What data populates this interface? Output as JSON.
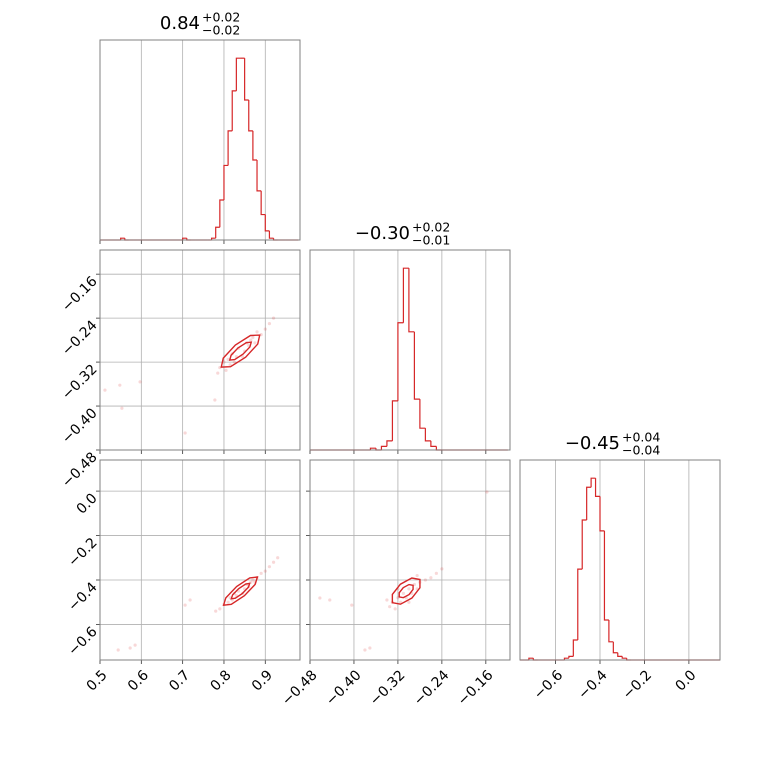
{
  "chart_data": {
    "type": "corner",
    "color": "#d62728",
    "grid": true,
    "hist_ylim": [
      0,
      110
    ],
    "parameters": [
      {
        "title": {
          "value": "0.84",
          "plus": "+0.02",
          "minus": "−0.02"
        },
        "lim": [
          0.5,
          0.984
        ],
        "ticks": [
          0.5,
          0.6,
          0.7,
          0.8,
          0.9
        ],
        "hist": {
          "bins": [
            0.5,
            0.51,
            0.52,
            0.53,
            0.54,
            0.55,
            0.56,
            0.57,
            0.58,
            0.59,
            0.6,
            0.61,
            0.62,
            0.63,
            0.64,
            0.65,
            0.66,
            0.67,
            0.68,
            0.69,
            0.7,
            0.71,
            0.72,
            0.73,
            0.74,
            0.75,
            0.76,
            0.77,
            0.78,
            0.79,
            0.8,
            0.81,
            0.82,
            0.83,
            0.84,
            0.85,
            0.86,
            0.87,
            0.88,
            0.89,
            0.9,
            0.91,
            0.92,
            0.93,
            0.94,
            0.95,
            0.96,
            0.97,
            0.98
          ],
          "counts": [
            0,
            0,
            0,
            0,
            0,
            1,
            0,
            0,
            0,
            0,
            0,
            0,
            0,
            0,
            0,
            0,
            0,
            0,
            0,
            0,
            1,
            0,
            0,
            0,
            0,
            0,
            0,
            1,
            7,
            22,
            41,
            60,
            82,
            100,
            100,
            77,
            60,
            44,
            27,
            14,
            5,
            1,
            0,
            0,
            0,
            0,
            0,
            0
          ]
        }
      },
      {
        "title": {
          "value": "−0.30",
          "plus": "+0.02",
          "minus": "−0.01"
        },
        "lim": [
          -0.48,
          -0.116
        ],
        "ticks": [
          {
            "value": -0.48,
            "label": "−0.48"
          },
          {
            "value": -0.4,
            "label": "−0.40"
          },
          {
            "value": -0.32,
            "label": "−0.32"
          },
          {
            "value": -0.24,
            "label": "−0.24"
          },
          {
            "value": -0.16,
            "label": "−0.16"
          }
        ],
        "hist": {
          "bins": [
            -0.48,
            -0.47,
            -0.46,
            -0.45,
            -0.44,
            -0.43,
            -0.42,
            -0.41,
            -0.4,
            -0.39,
            -0.38,
            -0.37,
            -0.36,
            -0.35,
            -0.34,
            -0.33,
            -0.32,
            -0.31,
            -0.3,
            -0.29,
            -0.28,
            -0.27,
            -0.26,
            -0.25,
            -0.24,
            -0.23,
            -0.22,
            -0.21,
            -0.2,
            -0.19,
            -0.18,
            -0.17,
            -0.16,
            -0.15,
            -0.14,
            -0.13,
            -0.12
          ],
          "counts": [
            0,
            0,
            0,
            0,
            0,
            0,
            0,
            0,
            0,
            0,
            0,
            1,
            0,
            2,
            5,
            27,
            70,
            100,
            65,
            28,
            12,
            5,
            2,
            0,
            0,
            0,
            0,
            0,
            0,
            0,
            0,
            0,
            0,
            0,
            0,
            0
          ]
        },
        "pairs": [
          {
            "points": {
              "x": [
                0.79,
                0.8,
                0.805,
                0.81,
                0.815,
                0.82,
                0.83,
                0.835,
                0.85,
                0.855,
                0.86,
                0.87,
                0.875,
                0.88,
                0.89,
                0.9,
                0.91,
                0.92,
                0.785,
                0.825,
                0.845,
                0.865,
                0.512,
                0.553,
                0.548,
                0.706,
                0.778,
                0.597
              ],
              "y": [
                -0.33,
                -0.32,
                -0.335,
                -0.315,
                -0.325,
                -0.305,
                -0.31,
                -0.295,
                -0.3,
                -0.285,
                -0.29,
                -0.275,
                -0.285,
                -0.265,
                -0.27,
                -0.26,
                -0.25,
                -0.24,
                -0.34,
                -0.32,
                -0.31,
                -0.28,
                -0.371,
                -0.404,
                -0.362,
                -0.449,
                -0.389,
                -0.356
              ]
            },
            "contours": [
              {
                "x": [
                  0.8865,
                  0.8817,
                  0.8524,
                  0.8159,
                  0.7935,
                  0.7983,
                  0.8276,
                  0.8641
                ],
                "y": [
                  -0.2709,
                  -0.2872,
                  -0.3111,
                  -0.3284,
                  -0.3291,
                  -0.3128,
                  -0.2889,
                  -0.2716
                ]
              },
              {
                "x": [
                  0.866,
                  0.8628,
                  0.8462,
                  0.826,
                  0.814,
                  0.8172,
                  0.8338,
                  0.854
                ],
                "y": [
                  -0.2837,
                  -0.2924,
                  -0.3055,
                  -0.3154,
                  -0.3163,
                  -0.3076,
                  -0.2945,
                  -0.2846
                ]
              }
            ]
          }
        ]
      },
      {
        "title": {
          "value": "−0.45",
          "plus": "+0.04",
          "minus": "−0.04"
        },
        "lim": [
          -0.76,
          0.14
        ],
        "ticks": [
          {
            "value": -0.6,
            "label": "−0.6"
          },
          {
            "value": -0.4,
            "label": "−0.4"
          },
          {
            "value": -0.2,
            "label": "−0.2"
          },
          {
            "value": 0,
            "label": "0.0"
          }
        ],
        "hist": {
          "bins": [
            -0.76,
            -0.74,
            -0.72,
            -0.7,
            -0.68,
            -0.66,
            -0.64,
            -0.62,
            -0.6,
            -0.58,
            -0.56,
            -0.54,
            -0.52,
            -0.5,
            -0.48,
            -0.46,
            -0.44,
            -0.42,
            -0.4,
            -0.38,
            -0.36,
            -0.34,
            -0.32,
            -0.3,
            -0.28,
            -0.26,
            -0.24,
            -0.22,
            -0.2,
            -0.18,
            -0.16,
            -0.14,
            -0.12,
            -0.1,
            -0.08,
            -0.06,
            -0.04,
            -0.02,
            0,
            0.02,
            0.04,
            0.06,
            0.08,
            0.1,
            0.12,
            0.14
          ],
          "counts": [
            0,
            0,
            1,
            0,
            0,
            0,
            0,
            0,
            0,
            0,
            1,
            2,
            11,
            50,
            77,
            95,
            100,
            90,
            71,
            22,
            10,
            4,
            2,
            1,
            0,
            0,
            0,
            0,
            0,
            0,
            0,
            0,
            0,
            0,
            0,
            0,
            0,
            0,
            0,
            0,
            0,
            0,
            0,
            0,
            0
          ]
        },
        "pairs": [
          {
            "points": {
              "x": [
                0.78,
                0.79,
                0.8,
                0.81,
                0.815,
                0.82,
                0.83,
                0.835,
                0.85,
                0.855,
                0.86,
                0.87,
                0.875,
                0.88,
                0.89,
                0.9,
                0.91,
                0.92,
                0.93,
                0.825,
                0.845,
                0.865,
                0.544,
                0.573,
                0.706,
                0.718,
                0.585
              ],
              "y": [
                -0.54,
                -0.53,
                -0.51,
                -0.5,
                -0.48,
                -0.49,
                -0.47,
                -0.45,
                -0.44,
                -0.42,
                -0.43,
                -0.4,
                -0.41,
                -0.39,
                -0.37,
                -0.36,
                -0.34,
                -0.32,
                -0.3,
                -0.46,
                -0.46,
                -0.41,
                -0.715,
                -0.706,
                -0.513,
                -0.49,
                -0.693
              ]
            },
            "contours": [
              {
                "x": [
                  0.8809,
                  0.8755,
                  0.8494,
                  0.8177,
                  0.7991,
                  0.8045,
                  0.8306,
                  0.8623
                ],
                "y": [
                  -0.3865,
                  -0.4197,
                  -0.4707,
                  -0.5095,
                  -0.5135,
                  -0.4803,
                  -0.4293,
                  -0.3905
                ]
              },
              {
                "x": [
                  0.8623,
                  0.8591,
                  0.8447,
                  0.8275,
                  0.8177,
                  0.8209,
                  0.8353,
                  0.8525
                ],
                "y": [
                  -0.4154,
                  -0.4328,
                  -0.4604,
                  -0.4818,
                  -0.4846,
                  -0.4672,
                  -0.4396,
                  -0.4182
                ]
              }
            ]
          },
          {
            "points": {
              "x": [
                -0.335,
                -0.33,
                -0.325,
                -0.32,
                -0.315,
                -0.31,
                -0.305,
                -0.3,
                -0.295,
                -0.29,
                -0.285,
                -0.28,
                -0.27,
                -0.26,
                -0.25,
                -0.24,
                -0.32,
                -0.3,
                -0.285,
                -0.34,
                -0.462,
                -0.404,
                -0.38,
                -0.371,
                -0.158,
                -0.444
              ],
              "y": [
                -0.52,
                -0.5,
                -0.53,
                -0.48,
                -0.5,
                -0.46,
                -0.48,
                -0.44,
                -0.46,
                -0.42,
                -0.44,
                -0.41,
                -0.4,
                -0.39,
                -0.37,
                -0.35,
                -0.44,
                -0.5,
                -0.38,
                -0.49,
                -0.481,
                -0.513,
                -0.715,
                -0.706,
                -0.004,
                -0.49
              ]
            },
            "contours": [
              {
                "x": [
                  -0.2799,
                  -0.2799,
                  -0.2945,
                  -0.3153,
                  -0.3301,
                  -0.3301,
                  -0.3155,
                  -0.2947
                ],
                "y": [
                  -0.3978,
                  -0.4351,
                  -0.4811,
                  -0.5089,
                  -0.5022,
                  -0.4649,
                  -0.4189,
                  -0.3911
                ]
              },
              {
                "x": [
                  -0.2924,
                  -0.2924,
                  -0.2997,
                  -0.3102,
                  -0.3176,
                  -0.3176,
                  -0.3103,
                  -0.2998
                ],
                "y": [
                  -0.4239,
                  -0.4425,
                  -0.4656,
                  -0.4795,
                  -0.4761,
                  -0.4575,
                  -0.4344,
                  -0.4205
                ]
              }
            ]
          }
        ]
      }
    ]
  }
}
